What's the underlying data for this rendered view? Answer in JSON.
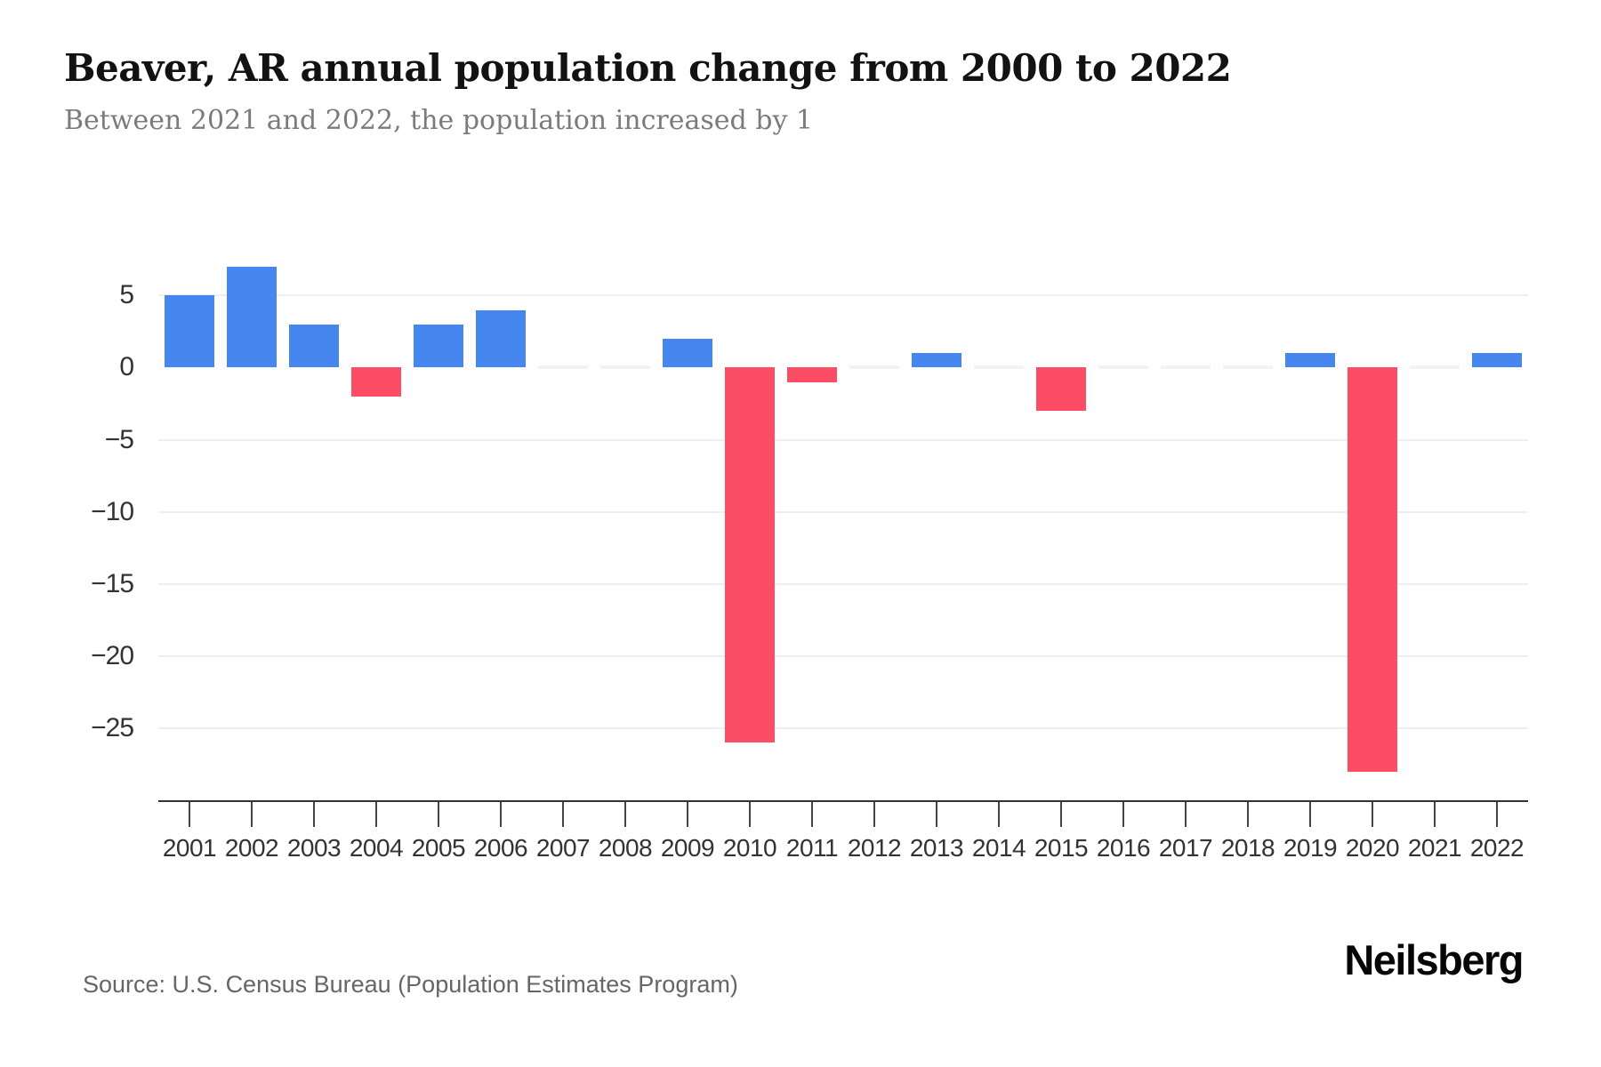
{
  "header": {
    "title": "Beaver, AR annual population change from 2000 to 2022",
    "subtitle": "Between 2021 and 2022, the population increased by 1"
  },
  "footer": {
    "source": "Source: U.S. Census Bureau (Population Estimates Program)",
    "brand": "Neilsberg"
  },
  "colors": {
    "positive_bar": "#4587EF",
    "negative_bar": "#FB4D64",
    "gridline": "#EEEEEE",
    "zero_stub": "#F0F2F3",
    "axis_line": "#333333",
    "tick": "#444444",
    "axis_label": "#333333",
    "title_text": "#121212",
    "subtitle_text": "#7B7B7B"
  },
  "chart_data": {
    "type": "bar",
    "title": "Beaver, AR annual population change from 2000 to 2022",
    "subtitle": "Between 2021 and 2022, the population increased by 1",
    "xlabel": "",
    "ylabel": "",
    "categories": [
      "2001",
      "2002",
      "2003",
      "2004",
      "2005",
      "2006",
      "2007",
      "2008",
      "2009",
      "2010",
      "2011",
      "2012",
      "2013",
      "2014",
      "2015",
      "2016",
      "2017",
      "2018",
      "2019",
      "2020",
      "2021",
      "2022"
    ],
    "values": [
      5,
      7,
      3,
      -2,
      3,
      4,
      0,
      0,
      2,
      -26,
      -1,
      0,
      1,
      0,
      -3,
      0,
      0,
      0,
      1,
      -28,
      0,
      1
    ],
    "ylim": [
      -30,
      11
    ],
    "yticks": [
      5,
      0,
      -5,
      -10,
      -15,
      -20,
      -25
    ],
    "gridlines": [
      5,
      -5,
      -10,
      -15,
      -20,
      -25
    ],
    "grid": "horizontal-only",
    "legend": "none",
    "positive_color": "#4587EF",
    "negative_color": "#FB4D64"
  }
}
